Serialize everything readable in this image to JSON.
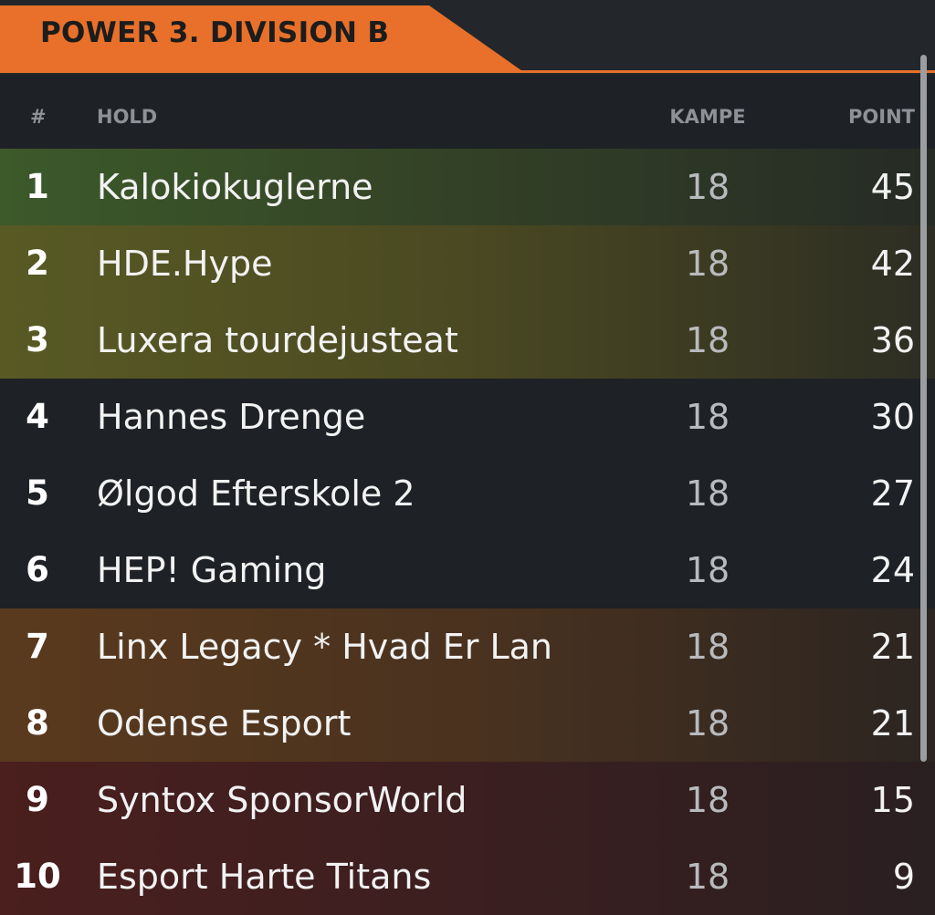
{
  "header": {
    "title": "POWER 3. DIVISION B"
  },
  "columns": {
    "rank": "#",
    "team": "HOLD",
    "games": "KAMPE",
    "points": "POINT"
  },
  "rows": [
    {
      "rank": "1",
      "team": "Kalokiokuglerne",
      "games": "18",
      "points": "45"
    },
    {
      "rank": "2",
      "team": "HDE.Hype",
      "games": "18",
      "points": "42"
    },
    {
      "rank": "3",
      "team": "Luxera tourdejusteat",
      "games": "18",
      "points": "36"
    },
    {
      "rank": "4",
      "team": "Hannes Drenge",
      "games": "18",
      "points": "30"
    },
    {
      "rank": "5",
      "team": "Ølgod Efterskole 2",
      "games": "18",
      "points": "27"
    },
    {
      "rank": "6",
      "team": "HEP! Gaming",
      "games": "18",
      "points": "24"
    },
    {
      "rank": "7",
      "team": "Linx Legacy * Hvad Er Lan",
      "games": "18",
      "points": "21"
    },
    {
      "rank": "8",
      "team": "Odense Esport",
      "games": "18",
      "points": "21"
    },
    {
      "rank": "9",
      "team": "Syntox SponsorWorld",
      "games": "18",
      "points": "15"
    },
    {
      "rank": "10",
      "team": "Esport Harte Titans",
      "games": "18",
      "points": "9"
    }
  ],
  "colors": {
    "accent": "#e8702a",
    "background": "#1e2125",
    "promotion_zone": "#3c5a2a",
    "playoff_zone": "#585a24",
    "relegation_playoff_zone": "#5a3a1e",
    "relegation_zone": "#4a1f1e"
  }
}
